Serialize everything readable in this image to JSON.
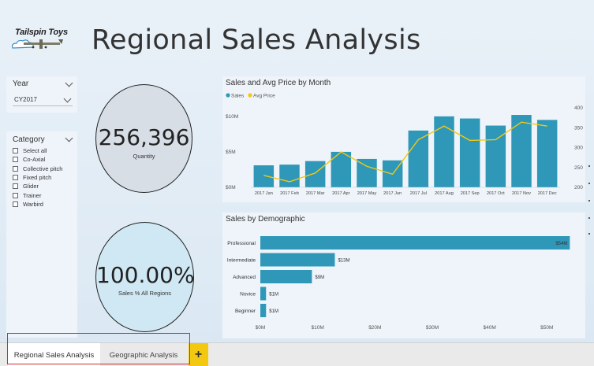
{
  "logo": {
    "text": "Tailspin Toys"
  },
  "page_title": "Regional Sales Analysis",
  "year_slicer": {
    "title": "Year",
    "selected": "CY2017"
  },
  "category_slicer": {
    "title": "Category",
    "items": [
      "Select all",
      "Co-Axial",
      "Collective pitch",
      "Fixed pitch",
      "Glider",
      "Trainer",
      "Warbird"
    ]
  },
  "kpi_quantity": {
    "value": "256,396",
    "label": "Quantity"
  },
  "kpi_sales_pct": {
    "value": "100.00%",
    "label": "Sales % All Regions"
  },
  "colors": {
    "sales": "#2f98b8",
    "avg_price": "#f2c811",
    "accent_red": "#d42a2a"
  },
  "chart_data": [
    {
      "type": "bar",
      "title": "Sales and Avg Price by Month",
      "legend": [
        "Sales",
        "Avg Price"
      ],
      "legend_position": "top-left",
      "categories": [
        "2017 Jan",
        "2017 Feb",
        "2017 Mar",
        "2017 Apr",
        "2017 May",
        "2017 Jun",
        "2017 Jul",
        "2017 Aug",
        "2017 Sep",
        "2017 Oct",
        "2017 Nov",
        "2017 Dec"
      ],
      "series": [
        {
          "name": "Sales",
          "type": "bar",
          "axis": "left",
          "values": [
            3.1,
            3.2,
            3.7,
            5.0,
            4.0,
            3.8,
            8.0,
            10.0,
            9.7,
            8.7,
            10.2,
            9.5
          ]
        },
        {
          "name": "Avg Price",
          "type": "line",
          "axis": "right",
          "values": [
            230,
            214,
            236,
            289,
            253,
            233,
            320,
            354,
            318,
            320,
            364,
            354
          ]
        }
      ],
      "y_left": {
        "ticks": [
          "$0M",
          "$5M",
          "$10M"
        ],
        "range": [
          0,
          11.2
        ]
      },
      "y_right": {
        "ticks": [
          "200",
          "250",
          "300",
          "350",
          "400"
        ],
        "range": [
          200,
          400
        ]
      }
    },
    {
      "type": "bar",
      "orientation": "horizontal",
      "title": "Sales by Demographic",
      "categories": [
        "Professional",
        "Intermediate",
        "Advanced",
        "Novice",
        "Beginner"
      ],
      "values": [
        54,
        13,
        9,
        1,
        1
      ],
      "data_labels": [
        "$54M",
        "$13M",
        "$9M",
        "$1M",
        "$1M"
      ],
      "x_ticks": [
        "$0M",
        "$10M",
        "$20M",
        "$30M",
        "$40M",
        "$50M"
      ],
      "x_range": [
        0,
        54.5
      ]
    }
  ],
  "tabs": {
    "active": "Regional Sales Analysis",
    "second": "Geographic Analysis",
    "add": "+"
  }
}
